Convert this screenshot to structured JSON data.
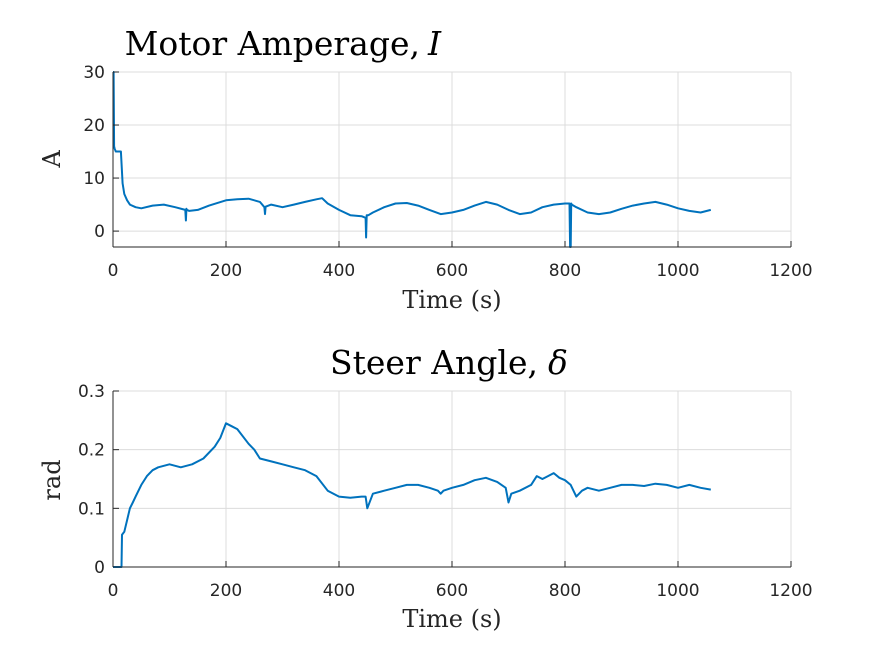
{
  "colors": {
    "series": "#0072BD",
    "axis": "#262626",
    "grid": "#dcdcdc"
  },
  "chart_data": [
    {
      "type": "line",
      "title": "Motor Amperage,",
      "title_symbol": "I",
      "xlabel": "Time (s)",
      "ylabel": "A",
      "xlim": [
        0,
        1200
      ],
      "ylim": [
        -3,
        30
      ],
      "xticks": [
        0,
        200,
        400,
        600,
        800,
        1000,
        1200
      ],
      "yticks": [
        0,
        10,
        20,
        30
      ],
      "grid": true,
      "series": [
        {
          "x": [
            0,
            1,
            2,
            3,
            5,
            8,
            12,
            14,
            17,
            20,
            25,
            30,
            40,
            50,
            70,
            90,
            110,
            128,
            129,
            130,
            131,
            135,
            150,
            170,
            200,
            220,
            240,
            260,
            268,
            269,
            270,
            280,
            300,
            320,
            340,
            360,
            370,
            380,
            400,
            420,
            440,
            447,
            448,
            449,
            452,
            460,
            480,
            500,
            520,
            540,
            560,
            580,
            600,
            620,
            640,
            660,
            680,
            700,
            720,
            740,
            760,
            780,
            800,
            808,
            809,
            810,
            811,
            812,
            820,
            840,
            860,
            880,
            900,
            920,
            940,
            960,
            980,
            1000,
            1020,
            1040,
            1058
          ],
          "y": [
            30,
            30,
            16,
            15.5,
            15,
            15,
            15,
            15,
            9,
            7,
            5.8,
            5,
            4.5,
            4.3,
            4.8,
            5,
            4.5,
            4,
            2,
            4.2,
            4,
            3.8,
            4,
            4.8,
            5.8,
            6,
            6.1,
            5.5,
            4.5,
            3.2,
            4.6,
            5,
            4.5,
            5,
            5.5,
            6,
            6.2,
            5.2,
            4,
            3,
            2.8,
            2.5,
            -1.2,
            3,
            3,
            3.5,
            4.5,
            5.2,
            5.3,
            4.8,
            4,
            3.2,
            3.5,
            4,
            4.8,
            5.5,
            5,
            4,
            3.2,
            3.5,
            4.5,
            5,
            5.2,
            5.2,
            -3,
            -3,
            5.2,
            5,
            4.5,
            3.5,
            3.2,
            3.5,
            4.2,
            4.8,
            5.2,
            5.5,
            5,
            4.3,
            3.8,
            3.5,
            4
          ]
        }
      ]
    },
    {
      "type": "line",
      "title": "Steer Angle,",
      "title_symbol": "δ",
      "xlabel": "Time (s)",
      "ylabel": "rad",
      "xlim": [
        0,
        1200
      ],
      "ylim": [
        0,
        0.3
      ],
      "xticks": [
        0,
        200,
        400,
        600,
        800,
        1000,
        1200
      ],
      "yticks": [
        0,
        0.1,
        0.2,
        0.3
      ],
      "grid": true,
      "series": [
        {
          "x": [
            0,
            15,
            16,
            20,
            25,
            30,
            35,
            40,
            50,
            60,
            70,
            80,
            100,
            120,
            140,
            160,
            180,
            190,
            200,
            210,
            220,
            240,
            250,
            260,
            280,
            300,
            320,
            340,
            360,
            380,
            400,
            420,
            440,
            447,
            450,
            460,
            480,
            500,
            520,
            540,
            560,
            575,
            580,
            585,
            600,
            620,
            640,
            660,
            680,
            695,
            700,
            705,
            720,
            740,
            750,
            760,
            770,
            780,
            790,
            800,
            810,
            820,
            830,
            840,
            860,
            880,
            900,
            920,
            940,
            960,
            980,
            1000,
            1020,
            1040,
            1058
          ],
          "y": [
            0,
            0,
            0.055,
            0.06,
            0.08,
            0.1,
            0.11,
            0.12,
            0.14,
            0.155,
            0.165,
            0.17,
            0.175,
            0.17,
            0.175,
            0.185,
            0.205,
            0.22,
            0.245,
            0.24,
            0.235,
            0.21,
            0.2,
            0.185,
            0.18,
            0.175,
            0.17,
            0.165,
            0.155,
            0.13,
            0.12,
            0.118,
            0.12,
            0.12,
            0.1,
            0.125,
            0.13,
            0.135,
            0.14,
            0.14,
            0.135,
            0.13,
            0.125,
            0.13,
            0.135,
            0.14,
            0.148,
            0.152,
            0.145,
            0.135,
            0.11,
            0.125,
            0.13,
            0.14,
            0.155,
            0.15,
            0.155,
            0.16,
            0.152,
            0.148,
            0.14,
            0.12,
            0.13,
            0.135,
            0.13,
            0.135,
            0.14,
            0.14,
            0.138,
            0.142,
            0.14,
            0.135,
            0.14,
            0.135,
            0.132
          ]
        }
      ]
    }
  ]
}
